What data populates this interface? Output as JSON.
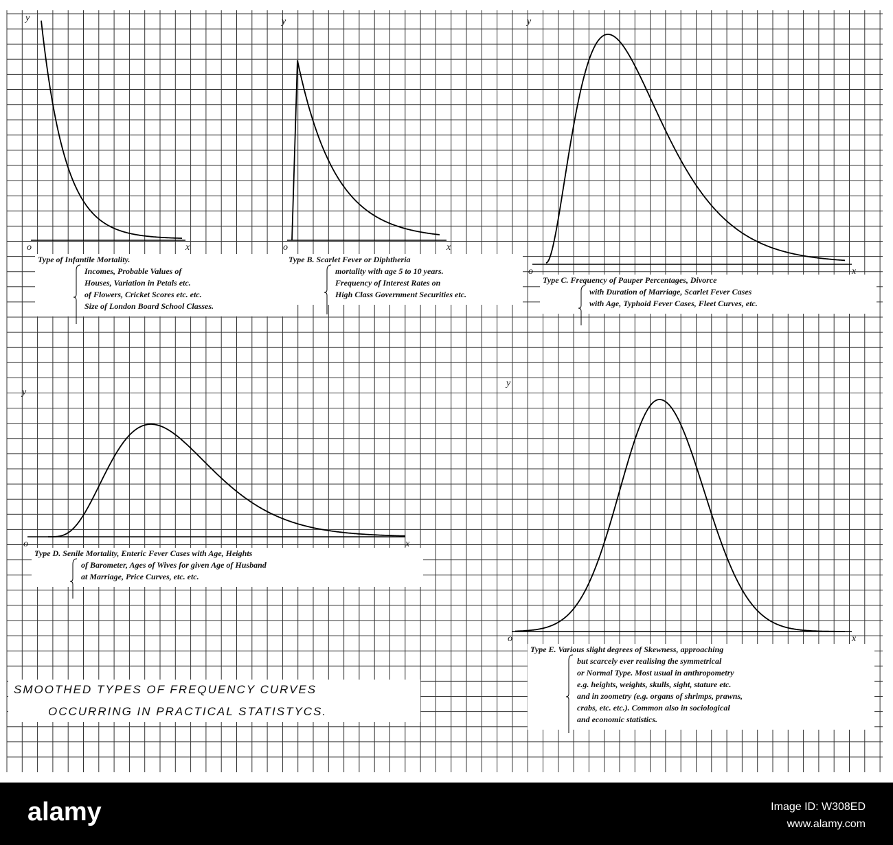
{
  "panels": [
    {
      "y": "y",
      "o": "o",
      "x": "x",
      "caption": [
        "Type of Infantile Mortality.",
        "Incomes, Probable Values of",
        "Houses, Variation in Petals etc.",
        "of Flowers, Cricket Scores etc. etc.",
        "Size of London Board School Classes."
      ]
    },
    {
      "y": "y",
      "o": "o",
      "x": "x",
      "caption": [
        "Type B. Scarlet Fever or Diphtheria",
        "mortality with age 5 to 10 years.",
        "Frequency of Interest Rates on",
        "High Class Government Securities etc."
      ]
    },
    {
      "y": "y",
      "o": "o",
      "x": "x",
      "caption": [
        "Type C. Frequency of Pauper Percentages, Divorce",
        "with Duration of Marriage, Scarlet Fever Cases",
        "with Age, Typhoid Fever Cases, Fleet Curves, etc."
      ]
    },
    {
      "y": "y",
      "o": "o",
      "x": "x",
      "caption": [
        "Type D. Senile Mortality, Enteric Fever Cases with Age, Heights",
        "of Barometer, Ages of Wives for given Age of Husband",
        "at Marriage, Price Curves, etc. etc."
      ]
    },
    {
      "y": "y",
      "o": "o",
      "x": "x",
      "caption": [
        "Type E. Various slight degrees of Skewness, approaching",
        "but scarcely ever realising the symmetrical",
        "or Normal Type. Most usual in anthropometry",
        "e.g. heights, weights, skulls, sight, stature etc.",
        "and in zoometry (e.g. organs of shrimps, prawns,",
        "crabs, etc. etc.). Common also in sociological",
        "and economic statistics."
      ]
    }
  ],
  "title": [
    "SMOOTHED TYPES OF FREQUENCY CURVES",
    "OCCURRING IN PRACTICAL STATISTYCS."
  ],
  "banner": {
    "logo": "alamy",
    "image_id": "Image ID: W308ED",
    "url": "www.alamy.com"
  }
}
